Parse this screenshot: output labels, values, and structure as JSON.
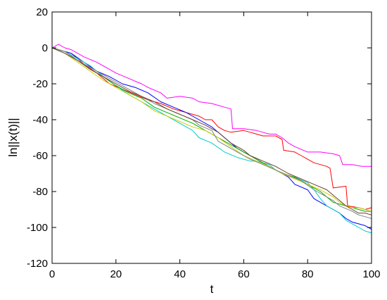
{
  "chart_data": {
    "type": "line",
    "xlabel": "t",
    "ylabel": "ln||x(t)||",
    "xlim": [
      0,
      100
    ],
    "ylim": [
      -120,
      20
    ],
    "xticks": [
      0,
      20,
      40,
      60,
      80,
      100
    ],
    "yticks": [
      20,
      0,
      -20,
      -40,
      -60,
      -80,
      -100,
      -120
    ],
    "grid": false,
    "series": [
      {
        "color": "#ff00ff",
        "points": [
          [
            0,
            0
          ],
          [
            2,
            2
          ],
          [
            4,
            0
          ],
          [
            6,
            -1
          ],
          [
            10,
            -5
          ],
          [
            14,
            -8
          ],
          [
            18,
            -12
          ],
          [
            20,
            -14
          ],
          [
            24,
            -17
          ],
          [
            28,
            -20
          ],
          [
            30,
            -22
          ],
          [
            34,
            -25
          ],
          [
            36,
            -28
          ],
          [
            40,
            -27
          ],
          [
            44,
            -28
          ],
          [
            46,
            -30
          ],
          [
            50,
            -31
          ],
          [
            54,
            -33
          ],
          [
            56,
            -34
          ],
          [
            56.5,
            -45
          ],
          [
            60,
            -45
          ],
          [
            64,
            -46
          ],
          [
            66,
            -47
          ],
          [
            68,
            -48
          ],
          [
            70,
            -48
          ],
          [
            72,
            -50
          ],
          [
            74,
            -53
          ],
          [
            76,
            -55
          ],
          [
            80,
            -58
          ],
          [
            84,
            -58
          ],
          [
            88,
            -59
          ],
          [
            90,
            -60
          ],
          [
            91,
            -65
          ],
          [
            94,
            -65
          ],
          [
            97,
            -66
          ],
          [
            100,
            -66
          ]
        ]
      },
      {
        "color": "#ff0000",
        "points": [
          [
            0,
            0
          ],
          [
            2,
            -1
          ],
          [
            6,
            -3
          ],
          [
            10,
            -9
          ],
          [
            14,
            -14
          ],
          [
            18,
            -20
          ],
          [
            22,
            -23
          ],
          [
            26,
            -26
          ],
          [
            30,
            -29
          ],
          [
            34,
            -31
          ],
          [
            38,
            -34
          ],
          [
            42,
            -36
          ],
          [
            46,
            -38
          ],
          [
            48,
            -40
          ],
          [
            50,
            -40
          ],
          [
            52,
            -44
          ],
          [
            54,
            -46
          ],
          [
            56,
            -47
          ],
          [
            60,
            -46
          ],
          [
            62,
            -47
          ],
          [
            64,
            -48
          ],
          [
            66,
            -49
          ],
          [
            70,
            -49
          ],
          [
            72,
            -51
          ],
          [
            72.5,
            -57
          ],
          [
            76,
            -58
          ],
          [
            78,
            -60
          ],
          [
            80,
            -62
          ],
          [
            82,
            -64
          ],
          [
            84,
            -65
          ],
          [
            86,
            -66
          ],
          [
            87,
            -67
          ],
          [
            88,
            -78
          ],
          [
            92,
            -77
          ],
          [
            92.5,
            -88
          ],
          [
            96,
            -89
          ],
          [
            98,
            -90
          ],
          [
            100,
            -89
          ]
        ]
      },
      {
        "color": "#0000ff",
        "points": [
          [
            0,
            0
          ],
          [
            2,
            -1
          ],
          [
            6,
            -3
          ],
          [
            10,
            -8
          ],
          [
            14,
            -13
          ],
          [
            18,
            -16
          ],
          [
            22,
            -20
          ],
          [
            26,
            -22
          ],
          [
            30,
            -25
          ],
          [
            34,
            -30
          ],
          [
            38,
            -33
          ],
          [
            42,
            -36
          ],
          [
            46,
            -40
          ],
          [
            50,
            -44
          ],
          [
            54,
            -50
          ],
          [
            58,
            -56
          ],
          [
            62,
            -60
          ],
          [
            66,
            -64
          ],
          [
            70,
            -68
          ],
          [
            74,
            -72
          ],
          [
            76,
            -76
          ],
          [
            80,
            -79
          ],
          [
            82,
            -84
          ],
          [
            86,
            -88
          ],
          [
            88,
            -90
          ],
          [
            90,
            -92
          ],
          [
            92,
            -95
          ],
          [
            94,
            -97
          ],
          [
            96,
            -98
          ],
          [
            98,
            -99
          ],
          [
            100,
            -101
          ]
        ]
      },
      {
        "color": "#00cccc",
        "points": [
          [
            0,
            0
          ],
          [
            4,
            -2
          ],
          [
            8,
            -6
          ],
          [
            12,
            -10
          ],
          [
            16,
            -16
          ],
          [
            20,
            -21
          ],
          [
            24,
            -26
          ],
          [
            28,
            -30
          ],
          [
            32,
            -34
          ],
          [
            36,
            -38
          ],
          [
            40,
            -42
          ],
          [
            44,
            -46
          ],
          [
            46,
            -50
          ],
          [
            50,
            -53
          ],
          [
            54,
            -58
          ],
          [
            58,
            -61
          ],
          [
            62,
            -63
          ],
          [
            64,
            -63
          ],
          [
            68,
            -65
          ],
          [
            70,
            -68
          ],
          [
            72,
            -70
          ],
          [
            76,
            -72
          ],
          [
            80,
            -75
          ],
          [
            82,
            -79
          ],
          [
            84,
            -84
          ],
          [
            86,
            -88
          ],
          [
            88,
            -90
          ],
          [
            90,
            -92
          ],
          [
            92,
            -96
          ],
          [
            94,
            -98
          ],
          [
            96,
            -100
          ],
          [
            98,
            -102
          ],
          [
            100,
            -103
          ]
        ]
      },
      {
        "color": "#00aa00",
        "points": [
          [
            0,
            0
          ],
          [
            4,
            -2
          ],
          [
            8,
            -7
          ],
          [
            12,
            -12
          ],
          [
            16,
            -16
          ],
          [
            20,
            -21
          ],
          [
            24,
            -25
          ],
          [
            28,
            -28
          ],
          [
            32,
            -33
          ],
          [
            36,
            -36
          ],
          [
            40,
            -39
          ],
          [
            44,
            -42
          ],
          [
            48,
            -46
          ],
          [
            50,
            -48
          ],
          [
            54,
            -52
          ],
          [
            58,
            -56
          ],
          [
            60,
            -58
          ],
          [
            64,
            -62
          ],
          [
            66,
            -64
          ],
          [
            68,
            -66
          ],
          [
            72,
            -70
          ],
          [
            76,
            -72
          ],
          [
            80,
            -76
          ],
          [
            84,
            -80
          ],
          [
            86,
            -83
          ],
          [
            88,
            -86
          ],
          [
            92,
            -88
          ],
          [
            96,
            -90
          ],
          [
            98,
            -91
          ],
          [
            100,
            -91
          ]
        ]
      },
      {
        "color": "#cccc00",
        "points": [
          [
            0,
            0
          ],
          [
            4,
            -3
          ],
          [
            8,
            -8
          ],
          [
            12,
            -13
          ],
          [
            16,
            -18
          ],
          [
            20,
            -22
          ],
          [
            24,
            -26
          ],
          [
            28,
            -30
          ],
          [
            32,
            -35
          ],
          [
            36,
            -38
          ],
          [
            40,
            -41
          ],
          [
            44,
            -44
          ],
          [
            48,
            -46
          ],
          [
            52,
            -50
          ],
          [
            56,
            -55
          ],
          [
            60,
            -60
          ],
          [
            64,
            -63
          ],
          [
            68,
            -66
          ],
          [
            72,
            -70
          ],
          [
            76,
            -73
          ],
          [
            80,
            -76
          ],
          [
            84,
            -79
          ],
          [
            88,
            -83
          ],
          [
            90,
            -86
          ],
          [
            92,
            -88
          ],
          [
            94,
            -89
          ],
          [
            96,
            -89
          ],
          [
            98,
            -90
          ],
          [
            100,
            -91
          ]
        ]
      },
      {
        "color": "#808080",
        "points": [
          [
            0,
            0
          ],
          [
            4,
            -2
          ],
          [
            8,
            -7
          ],
          [
            12,
            -11
          ],
          [
            16,
            -15
          ],
          [
            20,
            -19
          ],
          [
            24,
            -23
          ],
          [
            28,
            -27
          ],
          [
            32,
            -31
          ],
          [
            36,
            -34
          ],
          [
            40,
            -37
          ],
          [
            44,
            -40
          ],
          [
            46,
            -43
          ],
          [
            50,
            -46
          ],
          [
            52,
            -52
          ],
          [
            54,
            -54
          ],
          [
            58,
            -58
          ],
          [
            62,
            -62
          ],
          [
            66,
            -65
          ],
          [
            70,
            -68
          ],
          [
            74,
            -71
          ],
          [
            78,
            -74
          ],
          [
            82,
            -79
          ],
          [
            86,
            -83
          ],
          [
            88,
            -85
          ],
          [
            90,
            -88
          ],
          [
            94,
            -91
          ],
          [
            96,
            -93
          ],
          [
            98,
            -94
          ],
          [
            100,
            -95
          ]
        ]
      },
      {
        "color": "#6b4226",
        "points": [
          [
            0,
            0
          ],
          [
            4,
            -3
          ],
          [
            8,
            -7
          ],
          [
            12,
            -12
          ],
          [
            16,
            -16
          ],
          [
            20,
            -20
          ],
          [
            24,
            -24
          ],
          [
            28,
            -27
          ],
          [
            32,
            -30
          ],
          [
            36,
            -34
          ],
          [
            40,
            -37
          ],
          [
            44,
            -40
          ],
          [
            48,
            -43
          ],
          [
            52,
            -47
          ],
          [
            56,
            -53
          ],
          [
            60,
            -57
          ],
          [
            62,
            -60
          ],
          [
            66,
            -63
          ],
          [
            70,
            -66
          ],
          [
            74,
            -70
          ],
          [
            78,
            -73
          ],
          [
            82,
            -76
          ],
          [
            86,
            -79
          ],
          [
            88,
            -82
          ],
          [
            90,
            -85
          ],
          [
            92,
            -88
          ],
          [
            94,
            -90
          ],
          [
            96,
            -92
          ],
          [
            98,
            -92
          ],
          [
            100,
            -93
          ]
        ]
      }
    ]
  }
}
